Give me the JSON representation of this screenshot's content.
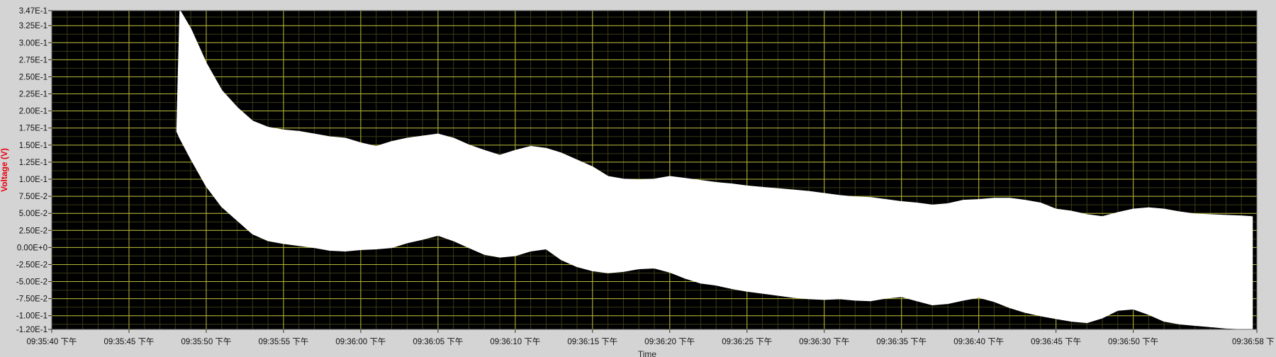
{
  "colors": {
    "frame": "#d4d4d4",
    "plot_background": "#000000",
    "grid_major": "#b8b83a",
    "grid_minor": "#3a3a18",
    "trace": "#ffffff",
    "ylabel": "#e8000b"
  },
  "chart_data": {
    "type": "area",
    "title": "",
    "xlabel": "Time",
    "ylabel": "Voltage (V)",
    "grid": true,
    "legend": "none",
    "xlim": [
      0,
      78
    ],
    "ylim": [
      -0.12,
      0.347
    ],
    "x_start_label": "09:35:40 下午",
    "x_tick_labels": [
      "09:35:40 下午",
      "09:35:45 下午",
      "09:35:50 下午",
      "09:35:55 下午",
      "09:36:00 下午",
      "09:36:05 下午",
      "09:36:10 下午",
      "09:36:15 下午",
      "09:36:20 下午",
      "09:36:25 下午",
      "09:36:30 下午",
      "09:36:35 下午",
      "09:36:40 下午",
      "09:36:45 下午",
      "09:36:50 下午",
      "09:36:58 下"
    ],
    "y_ticks": [
      -0.12,
      -0.1,
      -0.075,
      -0.05,
      -0.025,
      0,
      0.025,
      0.05,
      0.075,
      0.1,
      0.125,
      0.15,
      0.175,
      0.2,
      0.225,
      0.25,
      0.275,
      0.3,
      0.325,
      0.347
    ],
    "y_tick_labels": [
      "-1.20E-1",
      "-1.00E-1",
      "-7.50E-2",
      "-5.00E-2",
      "-2.50E-2",
      "0.00E+0",
      "2.50E-2",
      "5.00E-2",
      "7.50E-2",
      "1.00E-1",
      "1.25E-1",
      "1.50E-1",
      "1.75E-1",
      "2.00E-1",
      "2.25E-1",
      "2.50E-1",
      "2.75E-1",
      "3.00E-1",
      "3.25E-1",
      "3.47E-1"
    ],
    "series": [
      {
        "x": [
          8.1,
          8.3,
          9,
          10,
          11,
          12,
          13,
          14,
          15,
          16,
          17,
          18,
          19,
          20,
          21,
          22,
          23,
          24,
          25,
          26,
          27,
          28,
          29,
          30,
          31,
          32,
          33,
          34,
          35,
          36,
          37,
          38,
          39,
          40,
          41,
          42,
          43,
          44,
          45,
          46,
          47,
          48,
          49,
          50,
          51,
          52,
          53,
          54,
          55,
          56,
          57,
          58,
          59,
          60,
          61,
          62,
          63,
          64,
          65,
          66,
          67,
          68,
          69,
          70,
          71,
          72,
          73,
          74,
          75,
          76,
          77,
          77.7
        ],
        "upper": [
          0.17,
          0.347,
          0.32,
          0.27,
          0.23,
          0.205,
          0.185,
          0.176,
          0.172,
          0.17,
          0.166,
          0.162,
          0.16,
          0.153,
          0.148,
          0.155,
          0.16,
          0.163,
          0.166,
          0.16,
          0.15,
          0.142,
          0.135,
          0.142,
          0.148,
          0.145,
          0.138,
          0.128,
          0.118,
          0.104,
          0.1,
          0.099,
          0.1,
          0.104,
          0.101,
          0.098,
          0.095,
          0.093,
          0.09,
          0.088,
          0.086,
          0.084,
          0.082,
          0.079,
          0.076,
          0.074,
          0.073,
          0.07,
          0.067,
          0.065,
          0.062,
          0.064,
          0.069,
          0.07,
          0.072,
          0.072,
          0.069,
          0.065,
          0.056,
          0.053,
          0.048,
          0.045,
          0.051,
          0.056,
          0.058,
          0.056,
          0.052,
          0.049,
          0.048,
          0.047,
          0.046,
          0.045
        ],
        "lower": [
          0.17,
          0.16,
          0.13,
          0.09,
          0.06,
          0.04,
          0.02,
          0.01,
          0.006,
          0.003,
          0.0,
          -0.004,
          -0.005,
          -0.003,
          -0.002,
          0.0,
          0.007,
          0.012,
          0.018,
          0.01,
          0.0,
          -0.01,
          -0.014,
          -0.012,
          -0.005,
          -0.002,
          -0.018,
          -0.028,
          -0.034,
          -0.037,
          -0.035,
          -0.031,
          -0.03,
          -0.036,
          -0.045,
          -0.052,
          -0.055,
          -0.06,
          -0.064,
          -0.067,
          -0.07,
          -0.073,
          -0.075,
          -0.076,
          -0.075,
          -0.077,
          -0.078,
          -0.074,
          -0.072,
          -0.078,
          -0.084,
          -0.082,
          -0.077,
          -0.073,
          -0.079,
          -0.088,
          -0.095,
          -0.1,
          -0.104,
          -0.108,
          -0.11,
          -0.103,
          -0.092,
          -0.09,
          -0.098,
          -0.108,
          -0.112,
          -0.114,
          -0.116,
          -0.118,
          -0.119,
          -0.12
        ]
      }
    ]
  }
}
